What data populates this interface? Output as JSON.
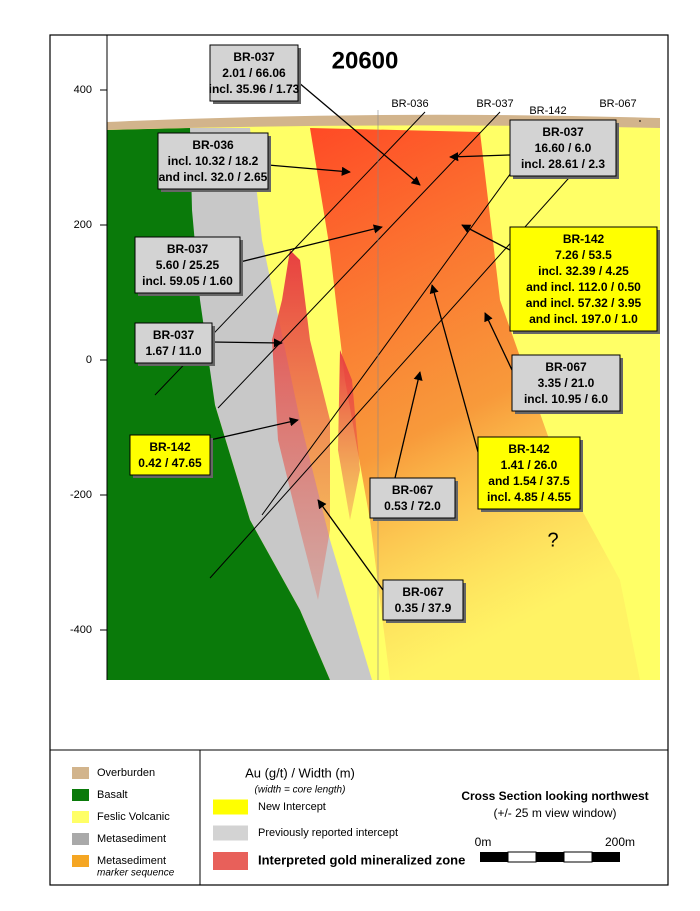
{
  "title": "20600",
  "elevation_axis": {
    "ticks": [
      400,
      200,
      0,
      -200,
      -400
    ]
  },
  "drill_holes": [
    "BR-036",
    "BR-037",
    "BR-142",
    "BR-067"
  ],
  "intercepts": [
    {
      "hole": "BR-037",
      "lines": [
        "2.01 / 66.06",
        "incl. 35.96 / 1.73"
      ],
      "key": 1
    },
    {
      "hole": "BR-036",
      "lines": [
        "incl. 10.32 / 18.2",
        "and incl. 32.0 / 2.65"
      ],
      "key": 1
    },
    {
      "hole": "BR-037",
      "lines": [
        "16.60 / 6.0",
        "incl. 28.61 / 2.3"
      ],
      "key": 1
    },
    {
      "hole": "BR-037",
      "lines": [
        "5.60 / 25.25",
        "incl. 59.05 / 1.60"
      ],
      "key": 1
    },
    {
      "hole": "BR-142",
      "lines": [
        "7.26 / 53.5",
        "incl. 32.39 / 4.25",
        "and incl. 112.0 / 0.50",
        "and incl. 57.32 / 3.95",
        "and incl. 197.0 / 1.0"
      ],
      "key": 0
    },
    {
      "hole": "BR-037",
      "lines": [
        "1.67 / 11.0"
      ],
      "key": 1
    },
    {
      "hole": "BR-067",
      "lines": [
        "3.35 / 21.0",
        "incl. 10.95 / 6.0"
      ],
      "key": 1
    },
    {
      "hole": "BR-142",
      "lines": [
        "0.42 / 47.65"
      ],
      "key": 0
    },
    {
      "hole": "BR-142",
      "lines": [
        "1.41 / 26.0",
        "and 1.54 / 37.5",
        "incl. 4.85 / 4.55"
      ],
      "key": 0
    },
    {
      "hole": "BR-067",
      "lines": [
        "0.53 / 72.0"
      ],
      "key": 1
    },
    {
      "hole": "BR-067",
      "lines": [
        "0.35 / 37.9"
      ],
      "key": 1
    }
  ],
  "question_mark": "?",
  "legend": {
    "units": [
      {
        "label": "Overburden",
        "color": "#d2b48c"
      },
      {
        "label": "Basalt",
        "color": "#0a7a0a"
      },
      {
        "label": "Feslic Volcanic",
        "color": "#ffff66"
      },
      {
        "label": "Metasediment",
        "color": "#a9a9a9"
      },
      {
        "label": "Metasediment",
        "note": "marker sequence",
        "color": "#f5a623"
      }
    ],
    "key_title": "Au (g/t) / Width (m)",
    "key_note": "(width = core length)",
    "key": [
      {
        "label": "New Intercept",
        "color": "#ffff00"
      },
      {
        "label": "Previously reported  intercept",
        "color": "#d3d3d3"
      },
      {
        "label": "Interpreted gold mineralized zone",
        "color": "#e8605a"
      }
    ]
  },
  "view": {
    "title": "Cross Section looking northwest",
    "window": "(+/- 25 m view window)",
    "scale": [
      "0m",
      "200m"
    ]
  }
}
